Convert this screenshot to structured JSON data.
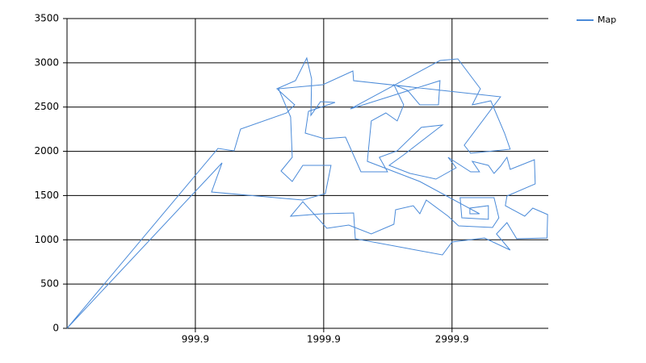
{
  "chart_data": {
    "type": "line",
    "series": [
      {
        "name": "Map",
        "color": "#4a8ad8",
        "x": [
          0,
          1176,
          1302,
          1352,
          1711,
          1774,
          1635,
          1780,
          1868,
          1906,
          1900,
          1975,
          2088,
          1881,
          1856,
          2006,
          2170,
          2290,
          2497,
          2434,
          2573,
          2761,
          2925,
          2623,
          2510,
          2673,
          2875,
          3032,
          2969,
          3145,
          3214,
          3158,
          3283,
          3327,
          3378,
          3428,
          3453,
          3642,
          3648,
          3428,
          3415,
          3566,
          3629,
          3745,
          3740,
          3504,
          3428,
          3346,
          3453,
          3252,
          3000,
          2925,
          2246,
          2233,
          1994,
          1742,
          1837,
          2025,
          2195,
          2371,
          2547,
          2560,
          2698,
          2749,
          2799,
          2969,
          3051,
          3315,
          3365,
          3327,
          3063,
          3076,
          3283,
          3283,
          3139,
          3139,
          3214,
          2749,
          2340,
          2371,
          2484,
          2573,
          2623,
          2547,
          2654,
          2749,
          2894,
          2906,
          2208,
          2906,
          3045,
          3221,
          3158,
          3302,
          3409,
          3453,
          3145,
          3095,
          3378,
          2233,
          2227,
          1994,
          1648,
          1742,
          1755,
          1667,
          1755,
          1837,
          2057,
          2013,
          1837,
          1126,
          1208,
          0
        ],
        "values": [
          0,
          2033,
          2005,
          2251,
          2434,
          2525,
          2707,
          2798,
          3054,
          2817,
          2406,
          2561,
          2552,
          2452,
          2206,
          2142,
          2160,
          1768,
          1768,
          1932,
          2005,
          2270,
          2297,
          1960,
          1841,
          1750,
          1686,
          1814,
          1932,
          1768,
          1768,
          1887,
          1841,
          1750,
          1832,
          1932,
          1796,
          1905,
          1632,
          1495,
          1385,
          1267,
          1358,
          1285,
          1021,
          1012,
          1194,
          1066,
          884,
          1021,
          975,
          829,
          1012,
          1303,
          1294,
          1267,
          1431,
          1130,
          1167,
          1066,
          1176,
          1340,
          1385,
          1294,
          1449,
          1267,
          1158,
          1139,
          1249,
          1477,
          1477,
          1249,
          1231,
          1385,
          1358,
          1294,
          1294,
          1659,
          1887,
          2343,
          2434,
          2343,
          2525,
          2753,
          2689,
          2525,
          2525,
          2798,
          2479,
          3026,
          3044,
          2707,
          2525,
          2570,
          2206,
          2023,
          1978,
          2069,
          2616,
          2798,
          2908,
          2753,
          2707,
          2388,
          1932,
          1777,
          1659,
          1841,
          1841,
          1522,
          1449,
          1540,
          1869,
          0
        ]
      }
    ],
    "xlim": [
      -0.1,
      3750
    ],
    "xticks": [
      999.9,
      1999.9,
      2999.9
    ],
    "ylim": [
      0,
      3500
    ],
    "yticks": [
      0,
      500,
      1000,
      1500,
      2000,
      2500,
      3000,
      3500
    ],
    "grid": true,
    "legend": "top-right"
  }
}
